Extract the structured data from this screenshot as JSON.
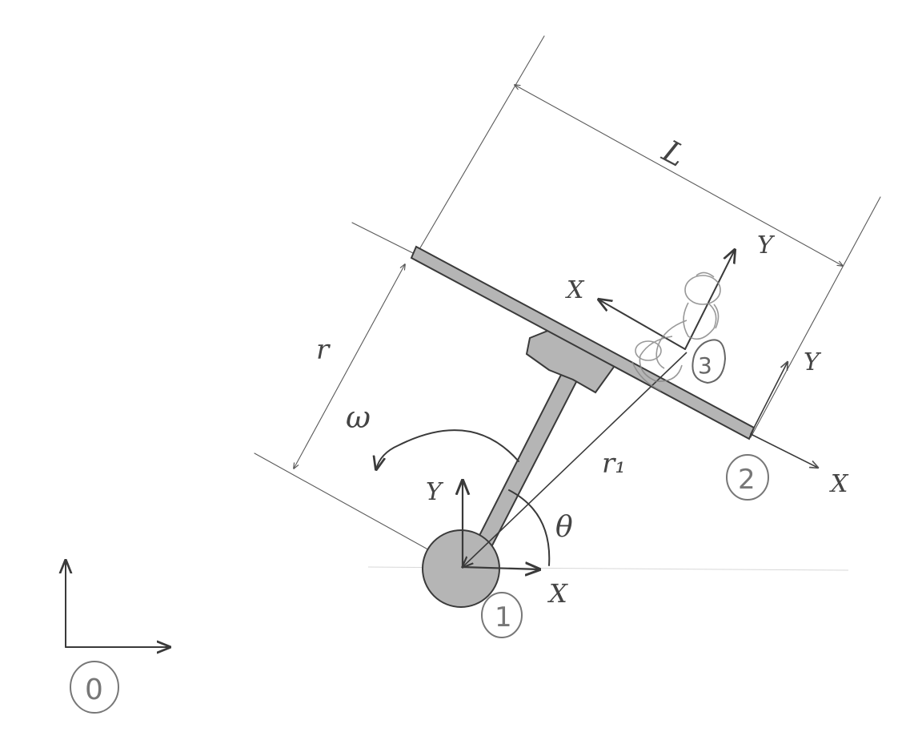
{
  "labels": {
    "length": "L",
    "radius": "r",
    "radius1": "r₁",
    "omega": "ω",
    "theta": "θ",
    "x": "X",
    "y": "Y"
  },
  "frames": {
    "f0": "0",
    "f1": "1",
    "f2": "2",
    "f3": "3"
  },
  "colors": {
    "link_fill": "#b5b5b5",
    "ink": "#3a3a3a",
    "pencil": "#6a6a6a"
  },
  "icons": {
    "figure": "stick-figure-icon"
  }
}
